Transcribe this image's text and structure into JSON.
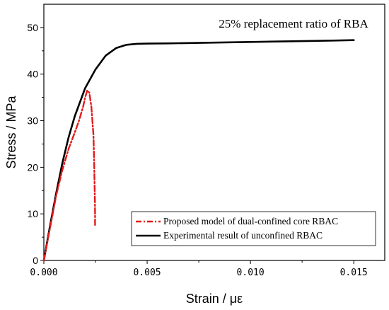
{
  "chart_data": {
    "type": "line",
    "title": "",
    "annotation": "25% replacement ratio of RBA",
    "xlabel": "Strain / με",
    "ylabel": "Stress / MPa",
    "xlim": [
      0,
      0.0165
    ],
    "ylim": [
      0,
      55
    ],
    "x_ticks": [
      0,
      0.005,
      0.01,
      0.015
    ],
    "x_tick_labels": [
      "0.000",
      "0.005",
      "0.010",
      "0.015"
    ],
    "y_ticks": [
      0,
      10,
      20,
      30,
      40,
      50
    ],
    "y_tick_labels": [
      "0",
      "10",
      "20",
      "30",
      "40",
      "50"
    ],
    "grid": false,
    "legend_position": "bottom-right",
    "series": [
      {
        "name": "Proposed model of dual-confined core RBAC",
        "color": "#e41a1c",
        "style": "dash-dot",
        "x": [
          0,
          0.0003,
          0.0006,
          0.0009,
          0.0012,
          0.0015,
          0.0017,
          0.0019,
          0.002,
          0.0021,
          0.0022,
          0.0023,
          0.00235,
          0.0024,
          0.00243,
          0.00245,
          0.00247,
          0.00248,
          0.00248
        ],
        "y": [
          0,
          7,
          14,
          19.5,
          24,
          27.5,
          30,
          33,
          35,
          36.5,
          36,
          33,
          30,
          27,
          22,
          17,
          13,
          10,
          7.5
        ]
      },
      {
        "name": "Experimental result of unconfined RBAC",
        "color": "#000000",
        "style": "solid",
        "x": [
          0,
          0.0003,
          0.0006,
          0.0009,
          0.0012,
          0.0015,
          0.002,
          0.0025,
          0.003,
          0.0035,
          0.004,
          0.0045,
          0.005,
          0.006,
          0.008,
          0.01,
          0.012,
          0.014,
          0.015
        ],
        "y": [
          0,
          7.5,
          14.5,
          21,
          26.5,
          31,
          37,
          41,
          44,
          45.6,
          46.3,
          46.5,
          46.55,
          46.6,
          46.75,
          46.9,
          47.05,
          47.2,
          47.3
        ]
      }
    ]
  }
}
